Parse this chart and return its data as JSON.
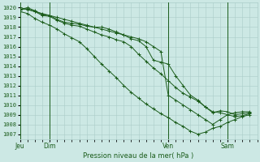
{
  "bg_color": "#cce8e4",
  "grid_color": "#aaccc8",
  "line_color": "#1a5c1a",
  "ylabel": "Pression niveau de la mer( hPa )",
  "ylim": [
    1006.5,
    1020.5
  ],
  "yticks": [
    1007,
    1008,
    1009,
    1010,
    1011,
    1012,
    1013,
    1014,
    1015,
    1016,
    1017,
    1018,
    1019,
    1020
  ],
  "xtick_labels": [
    "Jeu",
    "Dim",
    "Ven",
    "Sam"
  ],
  "xtick_positions": [
    0,
    12,
    60,
    84
  ],
  "vline_positions": [
    0,
    12,
    60,
    84
  ],
  "xlim": [
    0,
    96
  ],
  "series_x": [
    0,
    3,
    6,
    9,
    12,
    15,
    18,
    21,
    24,
    27,
    30,
    33,
    36,
    39,
    42,
    45,
    48,
    51,
    54,
    57,
    60,
    63,
    66,
    69,
    72,
    75,
    78,
    81,
    84,
    87,
    90,
    93
  ],
  "series": [
    [
      1019.8,
      1020.0,
      1019.7,
      1019.3,
      1019.2,
      1018.8,
      1018.5,
      1018.4,
      1018.3,
      1018.1,
      1018.0,
      1018.0,
      1017.8,
      1017.5,
      1017.2,
      1016.8,
      1016.6,
      1016.0,
      1014.6,
      1014.4,
      1014.2,
      1013.0,
      1012.0,
      1011.0,
      1010.5,
      1009.8,
      1009.2,
      1009.4,
      1009.3,
      1009.0,
      1009.1,
      1009.2
    ],
    [
      1019.8,
      1019.9,
      1019.6,
      1019.2,
      1019.1,
      1018.7,
      1018.4,
      1018.2,
      1018.1,
      1017.8,
      1017.5,
      1017.2,
      1017.0,
      1016.7,
      1016.5,
      1016.0,
      1015.2,
      1014.5,
      1013.8,
      1013.2,
      1012.5,
      1011.8,
      1011.2,
      1010.8,
      1010.4,
      1009.8,
      1009.3,
      1009.2,
      1009.0,
      1008.8,
      1008.9,
      1009.1
    ],
    [
      1019.6,
      1019.4,
      1018.9,
      1018.5,
      1018.2,
      1017.8,
      1017.3,
      1016.9,
      1016.5,
      1015.8,
      1015.0,
      1014.2,
      1013.5,
      1012.8,
      1012.0,
      1011.3,
      1010.7,
      1010.1,
      1009.6,
      1009.1,
      1008.7,
      1008.2,
      1007.8,
      1007.3,
      1007.0,
      1007.2,
      1007.6,
      1007.8,
      1008.2,
      1008.5,
      1008.8,
      1009.0
    ],
    [
      1020.0,
      1019.8,
      1019.6,
      1019.4,
      1019.2,
      1019.0,
      1018.8,
      1018.6,
      1018.4,
      1018.2,
      1018.0,
      1017.8,
      1017.6,
      1017.4,
      1017.2,
      1017.0,
      1016.8,
      1016.5,
      1016.0,
      1015.5,
      1011.0,
      1010.5,
      1010.0,
      1009.5,
      1009.0,
      1008.5,
      1008.0,
      1008.5,
      1009.0,
      1009.2,
      1009.3,
      1009.3
    ]
  ]
}
